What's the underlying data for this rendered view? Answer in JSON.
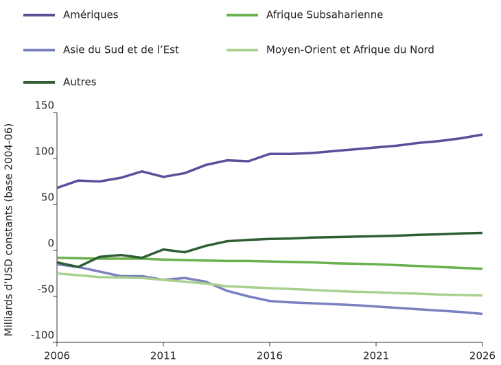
{
  "chart_data": {
    "type": "line",
    "y_label": "Milliards d’USD constants (base 2004-06)",
    "x": [
      2006,
      2007,
      2008,
      2009,
      2010,
      2011,
      2012,
      2013,
      2014,
      2015,
      2016,
      2017,
      2018,
      2019,
      2020,
      2021,
      2022,
      2023,
      2024,
      2025,
      2026
    ],
    "series": [
      {
        "name": "Amériques",
        "color": "#5b4f9a",
        "values": [
          68,
          76,
          75,
          79,
          86,
          80,
          84,
          93,
          98,
          97,
          105,
          105,
          106,
          108,
          110,
          112,
          114,
          117,
          119,
          122,
          126
        ]
      },
      {
        "name": "Afrique Subsaharienne",
        "color": "#6ab04c",
        "values": [
          -8,
          -8.5,
          -9,
          -9,
          -9,
          -10,
          -10.5,
          -11,
          -11.5,
          -11.5,
          -12,
          -12.5,
          -13,
          -14,
          -14.5,
          -15,
          -16,
          -17,
          -18,
          -19,
          -20
        ]
      },
      {
        "name": "Asie du Sud et de l’Est",
        "color": "#7b80c0",
        "values": [
          -15,
          -18,
          -23,
          -28,
          -28,
          -32,
          -30,
          -34,
          -44,
          -50,
          -55,
          -56.5,
          -57.5,
          -58.5,
          -59.5,
          -61,
          -62.5,
          -64,
          -65.5,
          -67,
          -69
        ]
      },
      {
        "name": "Moyen-Orient et Afrique du Nord",
        "color": "#a9d08e",
        "values": [
          -25,
          -27,
          -29,
          -29.5,
          -30,
          -32,
          -34,
          -36,
          -39,
          -40,
          -41,
          -42,
          -43,
          -44,
          -45,
          -45.5,
          -46.5,
          -47,
          -48,
          -48.5,
          -49
        ]
      },
      {
        "name": "Autres",
        "color": "#2d5e34",
        "values": [
          -13,
          -18,
          -7,
          -5,
          -8,
          1,
          -2,
          5,
          10,
          11.5,
          12.5,
          13,
          14,
          14.5,
          15,
          15.5,
          16,
          17,
          17.5,
          18.5,
          19
        ]
      }
    ],
    "xlim": [
      2006,
      2026
    ],
    "xticks": [
      2006,
      2011,
      2016,
      2021,
      2026
    ],
    "ylim": [
      -100,
      150
    ],
    "yticks": [
      -100,
      -50,
      0,
      50,
      100,
      150
    ]
  }
}
